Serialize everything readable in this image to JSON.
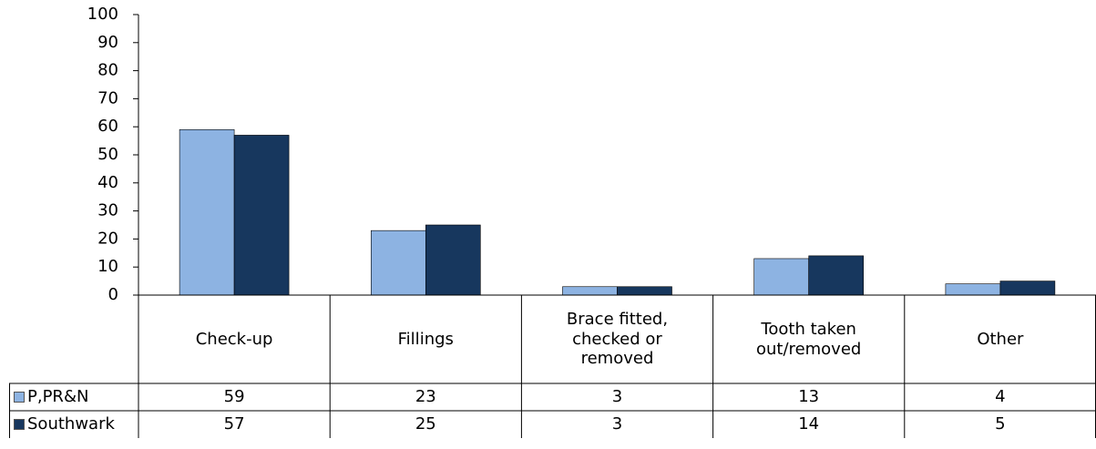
{
  "chart_data": {
    "type": "bar",
    "categories": [
      "Check-up",
      "Fillings",
      "Brace fitted, checked or removed",
      "Tooth taken out/removed",
      "Other"
    ],
    "series": [
      {
        "name": "P,PR&N",
        "color": "#8db3e2",
        "values": [
          59,
          23,
          3,
          13,
          4
        ]
      },
      {
        "name": "Southwark",
        "color": "#17375e",
        "values": [
          57,
          25,
          3,
          14,
          5
        ]
      }
    ],
    "ylim": [
      0,
      100
    ],
    "yticks": [
      0,
      10,
      20,
      30,
      40,
      50,
      60,
      70,
      80,
      90,
      100
    ],
    "data_table": true
  }
}
